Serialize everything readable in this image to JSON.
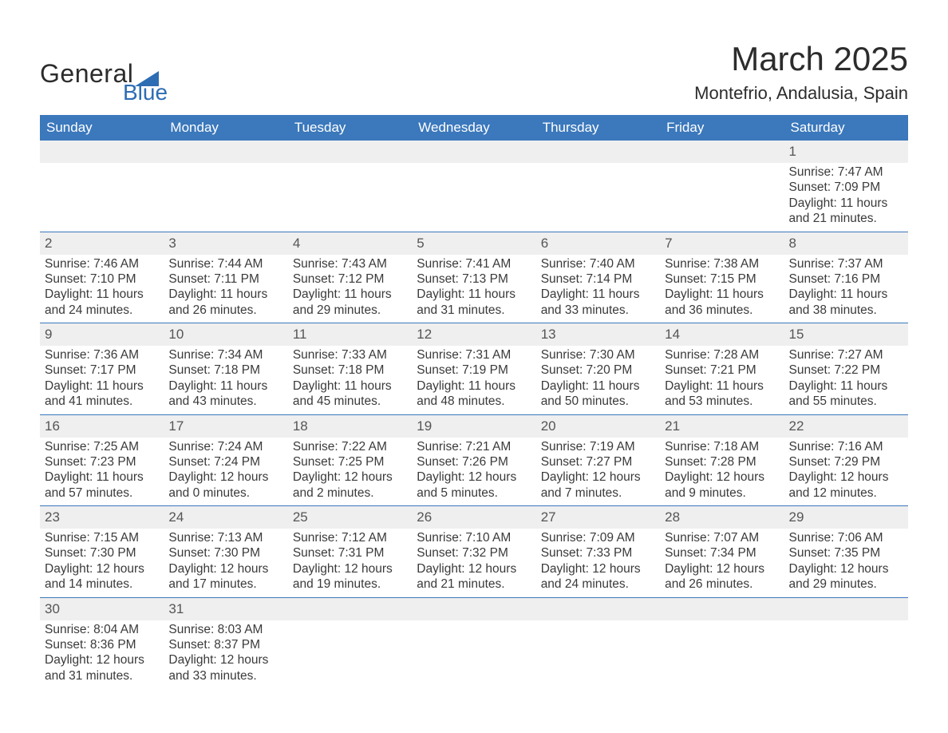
{
  "logo": {
    "word1": "General",
    "word2": "Blue",
    "tri_color": "#2d6db3",
    "text_color": "#2c2c2c"
  },
  "header": {
    "title": "March 2025",
    "location": "Montefrio, Andalusia, Spain"
  },
  "colors": {
    "header_bg": "#3b78bc",
    "header_text": "#ffffff",
    "daterow_bg": "#efefef",
    "rule": "#3b78bc",
    "body_text": "#3a3a3a"
  },
  "weekday_labels": [
    "Sunday",
    "Monday",
    "Tuesday",
    "Wednesday",
    "Thursday",
    "Friday",
    "Saturday"
  ],
  "labels": {
    "sunrise": "Sunrise:",
    "sunset": "Sunset:",
    "daylight": "Daylight:"
  },
  "weeks": [
    [
      null,
      null,
      null,
      null,
      null,
      null,
      {
        "d": "1",
        "sr": "7:47 AM",
        "ss": "7:09 PM",
        "dl": "11 hours and 21 minutes."
      }
    ],
    [
      {
        "d": "2",
        "sr": "7:46 AM",
        "ss": "7:10 PM",
        "dl": "11 hours and 24 minutes."
      },
      {
        "d": "3",
        "sr": "7:44 AM",
        "ss": "7:11 PM",
        "dl": "11 hours and 26 minutes."
      },
      {
        "d": "4",
        "sr": "7:43 AM",
        "ss": "7:12 PM",
        "dl": "11 hours and 29 minutes."
      },
      {
        "d": "5",
        "sr": "7:41 AM",
        "ss": "7:13 PM",
        "dl": "11 hours and 31 minutes."
      },
      {
        "d": "6",
        "sr": "7:40 AM",
        "ss": "7:14 PM",
        "dl": "11 hours and 33 minutes."
      },
      {
        "d": "7",
        "sr": "7:38 AM",
        "ss": "7:15 PM",
        "dl": "11 hours and 36 minutes."
      },
      {
        "d": "8",
        "sr": "7:37 AM",
        "ss": "7:16 PM",
        "dl": "11 hours and 38 minutes."
      }
    ],
    [
      {
        "d": "9",
        "sr": "7:36 AM",
        "ss": "7:17 PM",
        "dl": "11 hours and 41 minutes."
      },
      {
        "d": "10",
        "sr": "7:34 AM",
        "ss": "7:18 PM",
        "dl": "11 hours and 43 minutes."
      },
      {
        "d": "11",
        "sr": "7:33 AM",
        "ss": "7:18 PM",
        "dl": "11 hours and 45 minutes."
      },
      {
        "d": "12",
        "sr": "7:31 AM",
        "ss": "7:19 PM",
        "dl": "11 hours and 48 minutes."
      },
      {
        "d": "13",
        "sr": "7:30 AM",
        "ss": "7:20 PM",
        "dl": "11 hours and 50 minutes."
      },
      {
        "d": "14",
        "sr": "7:28 AM",
        "ss": "7:21 PM",
        "dl": "11 hours and 53 minutes."
      },
      {
        "d": "15",
        "sr": "7:27 AM",
        "ss": "7:22 PM",
        "dl": "11 hours and 55 minutes."
      }
    ],
    [
      {
        "d": "16",
        "sr": "7:25 AM",
        "ss": "7:23 PM",
        "dl": "11 hours and 57 minutes."
      },
      {
        "d": "17",
        "sr": "7:24 AM",
        "ss": "7:24 PM",
        "dl": "12 hours and 0 minutes."
      },
      {
        "d": "18",
        "sr": "7:22 AM",
        "ss": "7:25 PM",
        "dl": "12 hours and 2 minutes."
      },
      {
        "d": "19",
        "sr": "7:21 AM",
        "ss": "7:26 PM",
        "dl": "12 hours and 5 minutes."
      },
      {
        "d": "20",
        "sr": "7:19 AM",
        "ss": "7:27 PM",
        "dl": "12 hours and 7 minutes."
      },
      {
        "d": "21",
        "sr": "7:18 AM",
        "ss": "7:28 PM",
        "dl": "12 hours and 9 minutes."
      },
      {
        "d": "22",
        "sr": "7:16 AM",
        "ss": "7:29 PM",
        "dl": "12 hours and 12 minutes."
      }
    ],
    [
      {
        "d": "23",
        "sr": "7:15 AM",
        "ss": "7:30 PM",
        "dl": "12 hours and 14 minutes."
      },
      {
        "d": "24",
        "sr": "7:13 AM",
        "ss": "7:30 PM",
        "dl": "12 hours and 17 minutes."
      },
      {
        "d": "25",
        "sr": "7:12 AM",
        "ss": "7:31 PM",
        "dl": "12 hours and 19 minutes."
      },
      {
        "d": "26",
        "sr": "7:10 AM",
        "ss": "7:32 PM",
        "dl": "12 hours and 21 minutes."
      },
      {
        "d": "27",
        "sr": "7:09 AM",
        "ss": "7:33 PM",
        "dl": "12 hours and 24 minutes."
      },
      {
        "d": "28",
        "sr": "7:07 AM",
        "ss": "7:34 PM",
        "dl": "12 hours and 26 minutes."
      },
      {
        "d": "29",
        "sr": "7:06 AM",
        "ss": "7:35 PM",
        "dl": "12 hours and 29 minutes."
      }
    ],
    [
      {
        "d": "30",
        "sr": "8:04 AM",
        "ss": "8:36 PM",
        "dl": "12 hours and 31 minutes."
      },
      {
        "d": "31",
        "sr": "8:03 AM",
        "ss": "8:37 PM",
        "dl": "12 hours and 33 minutes."
      },
      null,
      null,
      null,
      null,
      null
    ]
  ]
}
